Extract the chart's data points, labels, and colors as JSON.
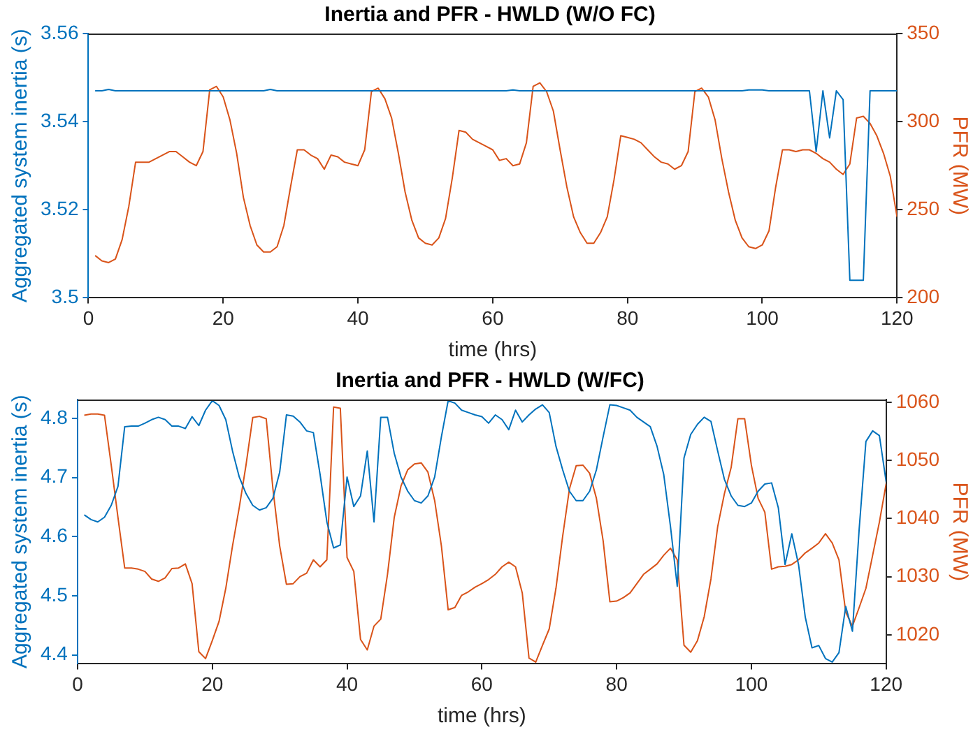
{
  "chart_data": [
    {
      "type": "line",
      "title": "Inertia and PFR - HWLD (W/O FC)",
      "xlabel": "time (hrs)",
      "ylabel": "Aggregated system inertia (s)",
      "y2label": "PFR (MW)",
      "xlim": [
        0,
        120
      ],
      "xticks": [
        0,
        20,
        40,
        60,
        80,
        100,
        120
      ],
      "ylim": [
        3.5,
        3.56
      ],
      "yticks": [
        3.5,
        3.52,
        3.54,
        3.56
      ],
      "y2lim": [
        200,
        350
      ],
      "y2ticks": [
        200,
        250,
        300,
        350
      ],
      "grid": false,
      "legend": false,
      "marker": "none",
      "line_style": "solid",
      "x": [
        1,
        2,
        3,
        4,
        5,
        6,
        7,
        8,
        9,
        10,
        11,
        12,
        13,
        14,
        15,
        16,
        17,
        18,
        19,
        20,
        21,
        22,
        23,
        24,
        25,
        26,
        27,
        28,
        29,
        30,
        31,
        32,
        33,
        34,
        35,
        36,
        37,
        38,
        39,
        40,
        41,
        42,
        43,
        44,
        45,
        46,
        47,
        48,
        49,
        50,
        51,
        52,
        53,
        54,
        55,
        56,
        57,
        58,
        59,
        60,
        61,
        62,
        63,
        64,
        65,
        66,
        67,
        68,
        69,
        70,
        71,
        72,
        73,
        74,
        75,
        76,
        77,
        78,
        79,
        80,
        81,
        82,
        83,
        84,
        85,
        86,
        87,
        88,
        89,
        90,
        91,
        92,
        93,
        94,
        95,
        96,
        97,
        98,
        99,
        100,
        101,
        102,
        103,
        104,
        105,
        106,
        107,
        108,
        109,
        110,
        111,
        112,
        113,
        114,
        115,
        116,
        117,
        118,
        119,
        120
      ],
      "series": [
        {
          "color": "#0072bd",
          "x": [
            1,
            2,
            3,
            4,
            5,
            26,
            27,
            28,
            62,
            63,
            64,
            97,
            98,
            100,
            101,
            107,
            108,
            109,
            110,
            111,
            112,
            113,
            115,
            116,
            120
          ],
          "values": [
            3.547,
            3.547,
            3.5473,
            3.547,
            3.547,
            3.547,
            3.5473,
            3.547,
            3.547,
            3.5472,
            3.547,
            3.547,
            3.5472,
            3.5472,
            3.547,
            3.547,
            3.5332,
            3.547,
            3.5363,
            3.547,
            3.545,
            3.504,
            3.504,
            3.547,
            3.547
          ]
        },
        {
          "color": "#d95319",
          "axis": "y2",
          "values": [
            224,
            221,
            220,
            222,
            233,
            252,
            277,
            277,
            277,
            279,
            281,
            283,
            283,
            280,
            277,
            275,
            283,
            318,
            320,
            314,
            301,
            282,
            257,
            241,
            230,
            226,
            226,
            229,
            241,
            263,
            284,
            284,
            281,
            279,
            273,
            281,
            280,
            277,
            276,
            275,
            284,
            317,
            319,
            313,
            302,
            282,
            260,
            244,
            234,
            231,
            230,
            234,
            245,
            268,
            295,
            294,
            290,
            288,
            286,
            284,
            278,
            279,
            275,
            276,
            288,
            320,
            322,
            317,
            306,
            284,
            263,
            246,
            237,
            231,
            231,
            237,
            246,
            267,
            292,
            291,
            290,
            288,
            284,
            280,
            277,
            276,
            273,
            275,
            283,
            317,
            319,
            314,
            301,
            279,
            260,
            244,
            234,
            229,
            228,
            230,
            238,
            263,
            284,
            284,
            283,
            284,
            284,
            282,
            279,
            277,
            273,
            270,
            276,
            302,
            303,
            299,
            292,
            282,
            269,
            246
          ]
        }
      ]
    },
    {
      "type": "line",
      "title": "Inertia and PFR - HWLD (W/FC)",
      "xlabel": "time (hrs)",
      "ylabel": "Aggregated system inertia (s)",
      "y2label": "PFR (MW)",
      "xlim": [
        0,
        120
      ],
      "xticks": [
        0,
        20,
        40,
        60,
        80,
        100,
        120
      ],
      "ylim": [
        4.385,
        4.832
      ],
      "yticks": [
        4.4,
        4.5,
        4.6,
        4.7,
        4.8
      ],
      "y2lim": [
        1015,
        1060.5
      ],
      "y2ticks": [
        1020,
        1030,
        1040,
        1050,
        1060
      ],
      "grid": false,
      "legend": false,
      "marker": "none",
      "line_style": "solid",
      "x": [
        1,
        2,
        3,
        4,
        5,
        6,
        7,
        8,
        9,
        10,
        11,
        12,
        13,
        14,
        15,
        16,
        17,
        18,
        19,
        20,
        21,
        22,
        23,
        24,
        25,
        26,
        27,
        28,
        29,
        30,
        31,
        32,
        33,
        34,
        35,
        36,
        37,
        38,
        39,
        40,
        41,
        42,
        43,
        44,
        45,
        46,
        47,
        48,
        49,
        50,
        51,
        52,
        53,
        54,
        55,
        56,
        57,
        58,
        59,
        60,
        61,
        62,
        63,
        64,
        65,
        66,
        67,
        68,
        69,
        70,
        71,
        72,
        73,
        74,
        75,
        76,
        77,
        78,
        79,
        80,
        81,
        82,
        83,
        84,
        85,
        86,
        87,
        88,
        89,
        90,
        91,
        92,
        93,
        94,
        95,
        96,
        97,
        98,
        99,
        100,
        101,
        102,
        103,
        104,
        105,
        106,
        107,
        108,
        109,
        110,
        111,
        112,
        113,
        114,
        115,
        116,
        117,
        118,
        119,
        120
      ],
      "series": [
        {
          "color": "#0072bd",
          "values": [
            4.637,
            4.629,
            4.625,
            4.633,
            4.653,
            4.685,
            4.786,
            4.787,
            4.787,
            4.792,
            4.798,
            4.802,
            4.798,
            4.787,
            4.787,
            4.783,
            4.803,
            4.788,
            4.814,
            4.83,
            4.822,
            4.798,
            4.745,
            4.701,
            4.673,
            4.653,
            4.645,
            4.649,
            4.665,
            4.709,
            4.806,
            4.804,
            4.794,
            4.779,
            4.776,
            4.705,
            4.625,
            4.581,
            4.586,
            4.701,
            4.651,
            4.669,
            4.745,
            4.625,
            4.802,
            4.802,
            4.741,
            4.701,
            4.677,
            4.661,
            4.657,
            4.669,
            4.701,
            4.769,
            4.83,
            4.826,
            4.814,
            4.81,
            4.806,
            4.803,
            4.792,
            4.806,
            4.798,
            4.781,
            4.814,
            4.794,
            4.806,
            4.816,
            4.823,
            4.81,
            4.753,
            4.713,
            4.677,
            4.661,
            4.661,
            4.677,
            4.713,
            4.769,
            4.823,
            4.822,
            4.818,
            4.814,
            4.802,
            4.794,
            4.786,
            4.753,
            4.705,
            4.617,
            4.516,
            4.733,
            4.773,
            4.79,
            4.802,
            4.795,
            4.745,
            4.697,
            4.669,
            4.653,
            4.651,
            4.657,
            4.677,
            4.689,
            4.691,
            4.649,
            4.553,
            4.605,
            4.553,
            4.464,
            4.412,
            4.416,
            4.394,
            4.388,
            4.404,
            4.482,
            4.44,
            4.613,
            4.761,
            4.779,
            4.771,
            4.693
          ]
        },
        {
          "color": "#d95319",
          "axis": "y2",
          "values": [
            1057.8,
            1058,
            1058,
            1057.8,
            1049.2,
            1040.2,
            1031.5,
            1031.5,
            1031.3,
            1030.9,
            1029.6,
            1029.2,
            1029.8,
            1031.4,
            1031.5,
            1032.2,
            1028.8,
            1017.1,
            1015.9,
            1019,
            1022.3,
            1028,
            1035.3,
            1041.9,
            1049.2,
            1057.4,
            1057.6,
            1057.2,
            1045.1,
            1035.3,
            1028.7,
            1028.8,
            1030,
            1030.6,
            1032.9,
            1031.7,
            1032.9,
            1059.2,
            1059,
            1033.3,
            1030.9,
            1019.2,
            1017.4,
            1021.5,
            1022.7,
            1030.4,
            1040.2,
            1045.6,
            1048.4,
            1049.4,
            1049.6,
            1048,
            1043.1,
            1035.3,
            1024.3,
            1024.7,
            1026.8,
            1027.4,
            1028.2,
            1028.8,
            1029.5,
            1030.4,
            1031.7,
            1032.5,
            1031.7,
            1027.2,
            1016,
            1015.3,
            1018.2,
            1021,
            1028,
            1037,
            1045.1,
            1049.1,
            1049.2,
            1047.8,
            1043.5,
            1036.2,
            1025.7,
            1025.8,
            1026.4,
            1027.2,
            1028.8,
            1030.4,
            1031.3,
            1032.2,
            1033.7,
            1034.9,
            1032.9,
            1018.2,
            1017,
            1019,
            1023.1,
            1029.6,
            1038.6,
            1044.3,
            1048.8,
            1057.2,
            1057.2,
            1049.2,
            1043.5,
            1041.1,
            1031.3,
            1031.7,
            1031.8,
            1032.1,
            1032.9,
            1034.1,
            1034.9,
            1035.8,
            1037.4,
            1035.8,
            1032.9,
            1023.9,
            1021.5,
            1024.7,
            1028,
            1033.7,
            1039.4,
            1046
          ]
        }
      ]
    }
  ]
}
